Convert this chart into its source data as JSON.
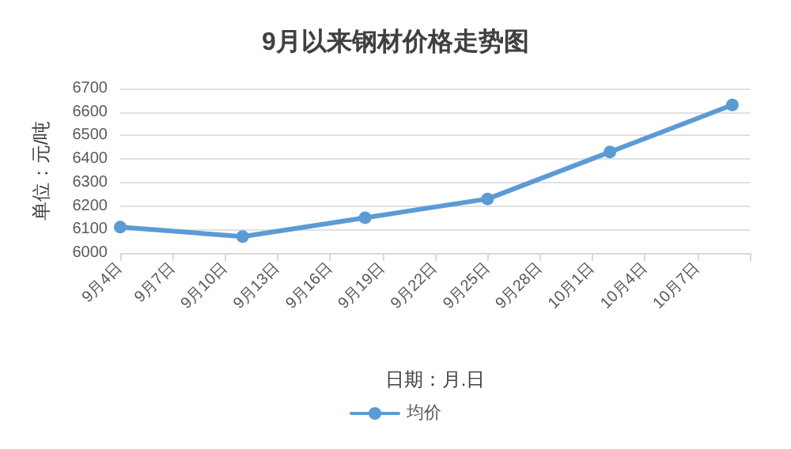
{
  "chart_data": {
    "type": "line",
    "title": "9月以来钢材价格走势图",
    "xlabel": "日期：月.日",
    "ylabel": "单位：元/吨",
    "x": [
      "--09-04",
      "--09-11",
      "--09-18",
      "--09-25",
      "--10-02",
      "--10-09"
    ],
    "series": [
      {
        "name": "均价",
        "color": "#5b9bd5",
        "values": [
          6110,
          6070,
          6150,
          6230,
          6430,
          6630
        ]
      }
    ],
    "xlim": [
      "--09-04",
      "--10-10"
    ],
    "xticks": [
      {
        "value": "--09-04",
        "label": "9月4日"
      },
      {
        "value": "--09-07",
        "label": "9月7日"
      },
      {
        "value": "--09-10",
        "label": "9月10日"
      },
      {
        "value": "--09-13",
        "label": "9月13日"
      },
      {
        "value": "--09-16",
        "label": "9月16日"
      },
      {
        "value": "--09-19",
        "label": "9月19日"
      },
      {
        "value": "--09-22",
        "label": "9月22日"
      },
      {
        "value": "--09-25",
        "label": "9月25日"
      },
      {
        "value": "--09-28",
        "label": "9月28日"
      },
      {
        "value": "--10-01",
        "label": "10月1日"
      },
      {
        "value": "--10-04",
        "label": "10月4日"
      },
      {
        "value": "--10-07",
        "label": "10月7日"
      },
      {
        "value": "--10-10",
        "label": null
      }
    ],
    "ylim": [
      6000,
      6700
    ],
    "yticks": [
      6000,
      6100,
      6200,
      6300,
      6400,
      6500,
      6600,
      6700
    ],
    "grid": "y",
    "legend": "bottom",
    "marker": "circle",
    "line_style": "solid"
  }
}
